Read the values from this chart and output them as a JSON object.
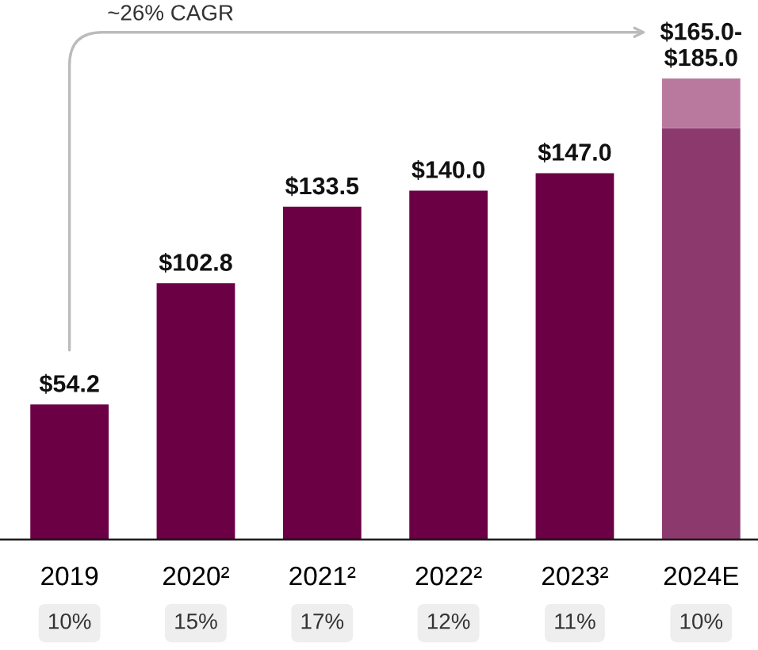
{
  "chart_data": {
    "type": "bar",
    "stacked": true,
    "categories": [
      "2019",
      "2020²",
      "2021²",
      "2022²",
      "2023²",
      "2024E"
    ],
    "series": [
      {
        "colors": [
          "#6b0045",
          "#6b0045",
          "#6b0045",
          "#6b0045",
          "#6b0045",
          "#8c3a6e"
        ],
        "values": [
          54.2,
          102.8,
          133.5,
          140.0,
          147.0,
          165.0
        ],
        "value_labels": [
          "$54.2",
          "$102.8",
          "$133.5",
          "$140.0",
          "$147.0",
          null
        ]
      },
      {
        "color": "#b9799f",
        "values": [
          null,
          null,
          null,
          null,
          null,
          20.0
        ],
        "value_labels": [
          null,
          null,
          null,
          null,
          null,
          "$165.0-\n$185.0"
        ]
      }
    ],
    "annotations": [
      "~26% CAGR",
      "10%",
      "15%",
      "17%",
      "12%",
      "11%",
      "10%"
    ],
    "grid": false,
    "legend": false
  }
}
